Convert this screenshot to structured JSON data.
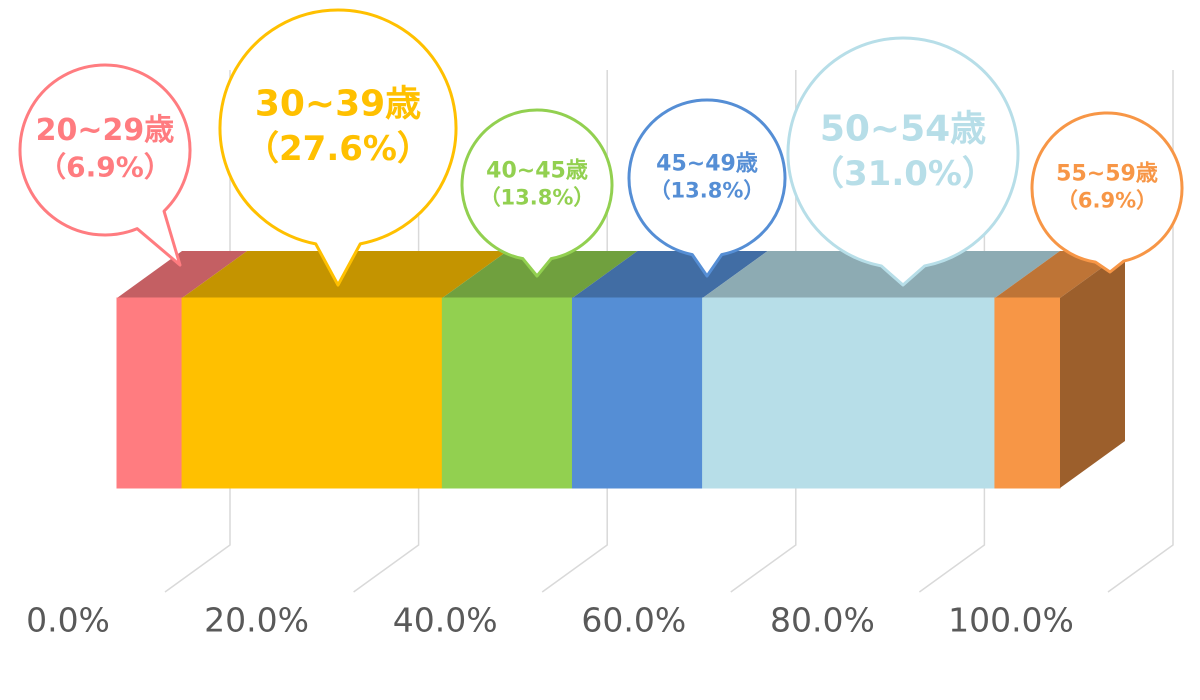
{
  "chart_data": {
    "type": "bar",
    "orientation": "horizontal",
    "stacked": true,
    "series": [
      {
        "name": "20~29歳",
        "color": "#ff7c80",
        "values": [
          6.9
        ],
        "value_labels": [
          "（6.9%）"
        ]
      },
      {
        "name": "30~39歳",
        "color": "#ffc000",
        "values": [
          27.6
        ],
        "value_labels": [
          "（27.6%）"
        ]
      },
      {
        "name": "40~45歳",
        "color": "#92d050",
        "values": [
          13.8
        ],
        "value_labels": [
          "（13.8%）"
        ]
      },
      {
        "name": "45~49歳",
        "color": "#558ed5",
        "values": [
          13.8
        ],
        "value_labels": [
          "（13.8%）"
        ]
      },
      {
        "name": "50~54歳",
        "color": "#b7dee8",
        "values": [
          31.0
        ],
        "value_labels": [
          "（31.0%）"
        ]
      },
      {
        "name": "55~59歳",
        "color": "#f79646",
        "values": [
          6.9
        ],
        "value_labels": [
          "（6.9%）"
        ]
      }
    ],
    "xlim": [
      0,
      100
    ],
    "xticks": [
      {
        "value": 0,
        "label": "0.0%"
      },
      {
        "value": 20,
        "label": "20.0%"
      },
      {
        "value": 40,
        "label": "40.0%"
      },
      {
        "value": 60,
        "label": "60.0%"
      },
      {
        "value": 80,
        "label": "80.0%"
      },
      {
        "value": 100,
        "label": "100.0%"
      }
    ],
    "grid": true
  }
}
